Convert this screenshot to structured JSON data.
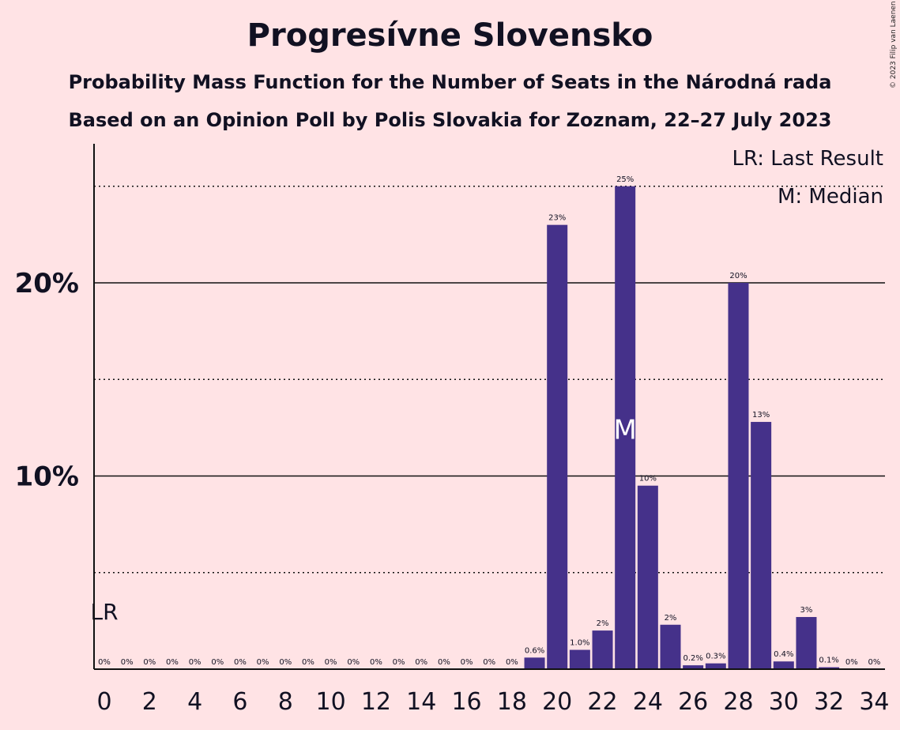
{
  "title": "Progresívne Slovensko",
  "subtitle1": "Probability Mass Function for the Number of Seats in the Národná rada",
  "subtitle2": "Based on an Opinion Poll by Polis Slovakia for Zoznam, 22–27 July 2023",
  "copyright": "© 2023 Filip van Laenen",
  "legend": {
    "last_result": "LR: Last Result",
    "median": "M: Median"
  },
  "markers": {
    "last_result_label": "LR",
    "last_result_seat": 0,
    "median_label": "M",
    "median_seat": 23
  },
  "colors": {
    "background": "#FFE3E5",
    "bar": "#45318A",
    "text": "#111122"
  },
  "chart_data": {
    "type": "bar",
    "x": [
      0,
      1,
      2,
      3,
      4,
      5,
      6,
      7,
      8,
      9,
      10,
      11,
      12,
      13,
      14,
      15,
      16,
      17,
      18,
      19,
      20,
      21,
      22,
      23,
      24,
      25,
      26,
      27,
      28,
      29,
      30,
      31,
      32,
      33,
      34
    ],
    "values": [
      0,
      0,
      0,
      0,
      0,
      0,
      0,
      0,
      0,
      0,
      0,
      0,
      0,
      0,
      0,
      0,
      0,
      0,
      0,
      0.6,
      23,
      1.0,
      2,
      25,
      9.5,
      2.3,
      0.2,
      0.3,
      20,
      12.8,
      0.4,
      2.7,
      0.1,
      0,
      0
    ],
    "data_labels": [
      "0%",
      "0%",
      "0%",
      "0%",
      "0%",
      "0%",
      "0%",
      "0%",
      "0%",
      "0%",
      "0%",
      "0%",
      "0%",
      "0%",
      "0%",
      "0%",
      "0%",
      "0%",
      "0%",
      "0.6%",
      "23%",
      "1.0%",
      "2%",
      "25%",
      "10%",
      "2%",
      "0.2%",
      "0.3%",
      "20%",
      "13%",
      "0.4%",
      "3%",
      "0.1%",
      "0%",
      "0%"
    ],
    "x_tick_labels": [
      "0",
      "2",
      "4",
      "6",
      "8",
      "10",
      "12",
      "14",
      "16",
      "18",
      "20",
      "22",
      "24",
      "26",
      "28",
      "30",
      "32",
      "34"
    ],
    "x_tick_values": [
      0,
      2,
      4,
      6,
      8,
      10,
      12,
      14,
      16,
      18,
      20,
      22,
      24,
      26,
      28,
      30,
      32,
      34
    ],
    "y_tick_labels": [
      "10%",
      "20%"
    ],
    "y_tick_values": [
      10,
      20
    ],
    "y_dotted_gridlines": [
      5,
      15,
      25
    ],
    "ylim": [
      0,
      27
    ],
    "xlabel": "",
    "ylabel": ""
  }
}
